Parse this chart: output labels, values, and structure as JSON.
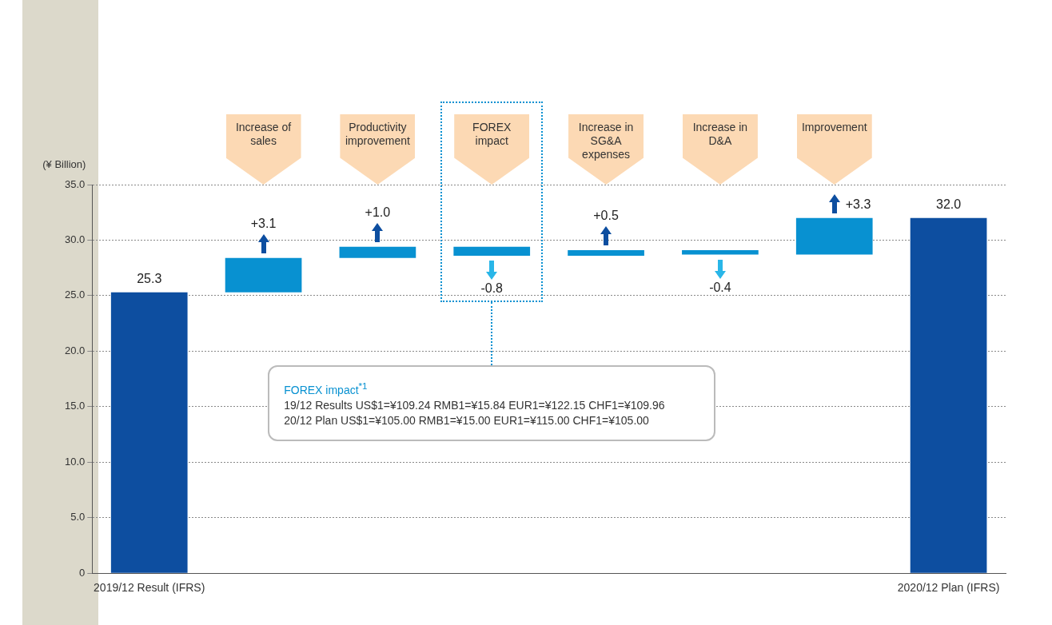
{
  "chart_data": {
    "type": "bar",
    "ylabel": "(¥ Billion)",
    "categories": [
      "2019/12 Result (IFRS)",
      "Increase of sales",
      "Productivity improvement",
      "FOREX impact",
      "Increase in SG&A expenses",
      "Increase in D&A",
      "Improvement",
      "2020/12 Plan (IFRS)"
    ],
    "values": [
      25.3,
      3.1,
      1.0,
      -0.8,
      0.5,
      -0.4,
      3.3,
      32.0
    ],
    "base": [
      0,
      25.3,
      28.4,
      29.4,
      28.6,
      29.1,
      28.7,
      0
    ],
    "colors": [
      "#0d4ea0",
      "#0891d1",
      "#0891d1",
      "#0891d1",
      "#0891d1",
      "#0891d1",
      "#0891d1",
      "#0d4ea0"
    ],
    "value_labels": [
      "25.3",
      "+3.1",
      "+1.0",
      "-0.8",
      "+0.5",
      "-0.4",
      "+3.3",
      "32.0"
    ],
    "ylim": [
      0,
      35
    ],
    "yticks": [
      0,
      {
        "value": 5,
        "label": "5.0"
      },
      {
        "value": 10,
        "label": "10.0"
      },
      {
        "value": 15,
        "label": "15.0"
      },
      {
        "value": 20,
        "label": "20.0"
      },
      {
        "value": 25,
        "label": "25.0"
      },
      {
        "value": 30,
        "label": "30.0"
      },
      {
        "value": 35,
        "label": "35.0"
      }
    ],
    "grid": "y",
    "legend": false,
    "annotations": [
      "FOREX impact$^{*1}$\n19/12 Results US$1=¥109.24 RMB1=¥15.84 EUR1=¥122.15 CHF1=¥109.96\n20/12 Plan US$1=¥105.00 RMB1=¥15.00 EUR1=¥115.00 CHF1=¥105.00"
    ]
  }
}
